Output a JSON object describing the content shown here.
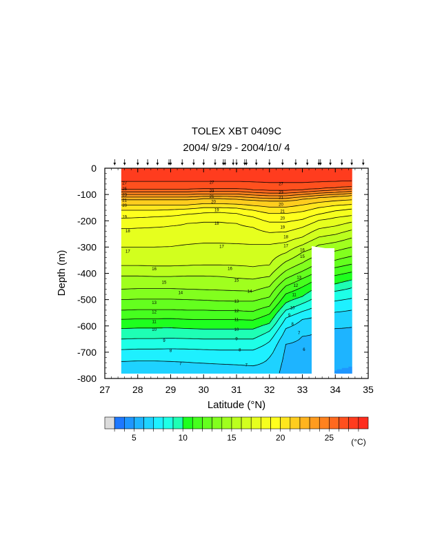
{
  "chart_data": {
    "type": "heatmap",
    "title": "TOLEX XBT 0409C",
    "subtitle": "2004/ 9/29 - 2004/10/ 4",
    "xlabel": "Latitude (°N)",
    "ylabel": "Depth (m)",
    "units_label": "(°C)",
    "xlim": [
      27,
      35
    ],
    "ylim": [
      -800,
      0
    ],
    "x_ticks": [
      "27",
      "28",
      "29",
      "30",
      "31",
      "32",
      "33",
      "34",
      "35"
    ],
    "y_ticks": [
      "0",
      "-100",
      "-200",
      "-300",
      "-400",
      "-500",
      "-600",
      "-700",
      "-800"
    ],
    "colorbar_ticks": [
      "5",
      "10",
      "15",
      "20",
      "25"
    ],
    "colorbar_levels": [
      3,
      4,
      5,
      6,
      7,
      8,
      9,
      10,
      11,
      12,
      13,
      14,
      15,
      16,
      17,
      18,
      19,
      20,
      21,
      22,
      23,
      24,
      25,
      26,
      27,
      28
    ],
    "colors": [
      "#dcdcdc",
      "#1e78ff",
      "#1e96ff",
      "#1eb4ff",
      "#1ed2ff",
      "#1ef0ff",
      "#1effe6",
      "#1effb4",
      "#1eff1e",
      "#46ff1e",
      "#64ff1e",
      "#82ff1e",
      "#a0ff1e",
      "#bbff1e",
      "#d2ff1e",
      "#e6ff1e",
      "#f5ff1e",
      "#ffff1e",
      "#ffe61e",
      "#ffcd1e",
      "#ffb41e",
      "#ff9b1e",
      "#ff821e",
      "#ff691e",
      "#ff501e",
      "#ff3c1e",
      "#ff2d1e"
    ],
    "station_latitudes": [
      27.3,
      27.6,
      28.0,
      28.3,
      28.6,
      28.95,
      29.0,
      29.35,
      29.7,
      30.0,
      30.35,
      30.6,
      30.65,
      30.9,
      31.0,
      31.25,
      31.3,
      31.6,
      32.0,
      32.4,
      32.8,
      33.15,
      33.5,
      33.55,
      33.85,
      34.2,
      34.5,
      34.85
    ],
    "contour_labels": [
      {
        "text": "27",
        "lat": 27.6,
        "depth": -55
      },
      {
        "text": "25",
        "lat": 27.6,
        "depth": -78
      },
      {
        "text": "23",
        "lat": 27.6,
        "depth": -100
      },
      {
        "text": "21",
        "lat": 27.6,
        "depth": -120
      },
      {
        "text": "20",
        "lat": 27.6,
        "depth": -140
      },
      {
        "text": "19",
        "lat": 27.6,
        "depth": -183
      },
      {
        "text": "18",
        "lat": 27.7,
        "depth": -237
      },
      {
        "text": "17",
        "lat": 27.7,
        "depth": -315
      },
      {
        "text": "16",
        "lat": 28.5,
        "depth": -382
      },
      {
        "text": "15",
        "lat": 28.8,
        "depth": -433
      },
      {
        "text": "14",
        "lat": 29.3,
        "depth": -472
      },
      {
        "text": "13",
        "lat": 28.5,
        "depth": -510
      },
      {
        "text": "12",
        "lat": 28.5,
        "depth": -545
      },
      {
        "text": "11",
        "lat": 28.5,
        "depth": -582
      },
      {
        "text": "10",
        "lat": 28.5,
        "depth": -612
      },
      {
        "text": "9",
        "lat": 28.8,
        "depth": -655
      },
      {
        "text": "8",
        "lat": 29.0,
        "depth": -693
      },
      {
        "text": "7",
        "lat": 29.3,
        "depth": -742
      },
      {
        "text": "27",
        "lat": 30.25,
        "depth": -52
      },
      {
        "text": "23",
        "lat": 30.25,
        "depth": -85
      },
      {
        "text": "21",
        "lat": 30.25,
        "depth": -106
      },
      {
        "text": "20",
        "lat": 30.3,
        "depth": -126
      },
      {
        "text": "19",
        "lat": 30.4,
        "depth": -157
      },
      {
        "text": "18",
        "lat": 30.4,
        "depth": -209
      },
      {
        "text": "17",
        "lat": 30.55,
        "depth": -297
      },
      {
        "text": "16",
        "lat": 30.8,
        "depth": -380
      },
      {
        "text": "15",
        "lat": 31.0,
        "depth": -425
      },
      {
        "text": "14",
        "lat": 31.4,
        "depth": -467
      },
      {
        "text": "13",
        "lat": 31.0,
        "depth": -505
      },
      {
        "text": "12",
        "lat": 31.0,
        "depth": -542
      },
      {
        "text": "11",
        "lat": 31.0,
        "depth": -575
      },
      {
        "text": "10",
        "lat": 31.0,
        "depth": -613
      },
      {
        "text": "9",
        "lat": 31.0,
        "depth": -648
      },
      {
        "text": "8",
        "lat": 31.1,
        "depth": -690
      },
      {
        "text": "7",
        "lat": 31.3,
        "depth": -747
      },
      {
        "text": "27",
        "lat": 32.35,
        "depth": -58
      },
      {
        "text": "23",
        "lat": 32.35,
        "depth": -90
      },
      {
        "text": "21",
        "lat": 32.35,
        "depth": -110
      },
      {
        "text": "20",
        "lat": 32.35,
        "depth": -137
      },
      {
        "text": "21",
        "lat": 32.4,
        "depth": -162
      },
      {
        "text": "20",
        "lat": 32.4,
        "depth": -189
      },
      {
        "text": "19",
        "lat": 32.4,
        "depth": -223
      },
      {
        "text": "18",
        "lat": 32.5,
        "depth": -260
      },
      {
        "text": "17",
        "lat": 32.5,
        "depth": -294
      },
      {
        "text": "16",
        "lat": 33.0,
        "depth": -310
      },
      {
        "text": "15",
        "lat": 33.0,
        "depth": -335
      },
      {
        "text": "13",
        "lat": 32.9,
        "depth": -415
      },
      {
        "text": "12",
        "lat": 32.8,
        "depth": -445
      },
      {
        "text": "11",
        "lat": 32.75,
        "depth": -480
      },
      {
        "text": "10",
        "lat": 32.7,
        "depth": -530
      },
      {
        "text": "9",
        "lat": 32.6,
        "depth": -558
      },
      {
        "text": "8",
        "lat": 32.7,
        "depth": -592
      },
      {
        "text": "7",
        "lat": 32.9,
        "depth": -625
      },
      {
        "text": "6",
        "lat": 33.05,
        "depth": -688
      }
    ]
  }
}
